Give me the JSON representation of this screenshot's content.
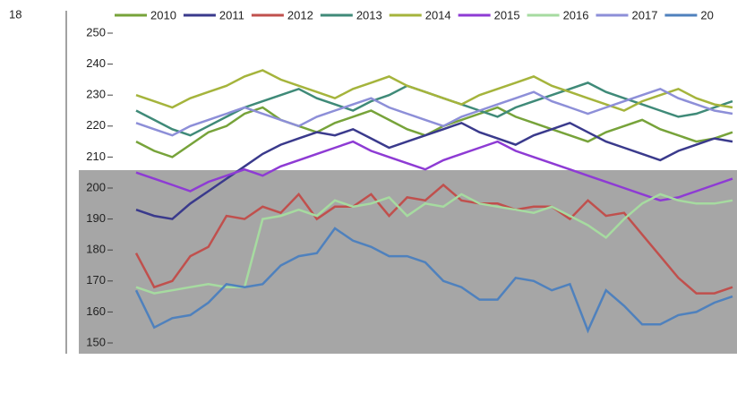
{
  "chart_data": {
    "type": "line",
    "annotation": "18",
    "categories": [
      null,
      null,
      null,
      null,
      null,
      null,
      null,
      null,
      null,
      null,
      null,
      null,
      null,
      null,
      null,
      null,
      null,
      null,
      null,
      null,
      null,
      null,
      null,
      null,
      null,
      null,
      null,
      null,
      null,
      null,
      null,
      null,
      null,
      null
    ],
    "ylim": [
      150,
      250
    ],
    "yticks": [
      150,
      160,
      170,
      180,
      190,
      200,
      210,
      220,
      230,
      240,
      250
    ],
    "grid": false,
    "legend": "top",
    "series": [
      {
        "name": "2010",
        "color": "#77a33a",
        "values": [
          215,
          212,
          210,
          214,
          218,
          220,
          224,
          226,
          222,
          220,
          218,
          221,
          223,
          225,
          222,
          219,
          217,
          220,
          222,
          224,
          226,
          223,
          221,
          219,
          217,
          215,
          218,
          220,
          222,
          219,
          217,
          215,
          216,
          218
        ]
      },
      {
        "name": "2011",
        "color": "#3a3a8c",
        "values": [
          193,
          191,
          190,
          195,
          199,
          203,
          207,
          211,
          214,
          216,
          218,
          217,
          219,
          216,
          213,
          215,
          217,
          219,
          221,
          218,
          216,
          214,
          217,
          219,
          221,
          218,
          215,
          213,
          211,
          209,
          212,
          214,
          216,
          215
        ]
      },
      {
        "name": "2012",
        "color": "#c0504d",
        "values": [
          179,
          168,
          170,
          178,
          181,
          191,
          190,
          194,
          192,
          198,
          190,
          194,
          194,
          198,
          191,
          197,
          196,
          201,
          196,
          195,
          195,
          193,
          194,
          194,
          190,
          196,
          191,
          192,
          185,
          178,
          171,
          166,
          166,
          168
        ]
      },
      {
        "name": "2013",
        "color": "#3f8a78",
        "values": [
          225,
          222,
          219,
          217,
          220,
          223,
          226,
          228,
          230,
          232,
          229,
          227,
          225,
          228,
          230,
          233,
          231,
          229,
          227,
          225,
          223,
          226,
          228,
          230,
          232,
          234,
          231,
          229,
          227,
          225,
          223,
          224,
          226,
          228
        ]
      },
      {
        "name": "2014",
        "color": "#a5b43c",
        "values": [
          230,
          228,
          226,
          229,
          231,
          233,
          236,
          238,
          235,
          233,
          231,
          229,
          232,
          234,
          236,
          233,
          231,
          229,
          227,
          230,
          232,
          234,
          236,
          233,
          231,
          229,
          227,
          225,
          228,
          230,
          232,
          229,
          227,
          226
        ]
      },
      {
        "name": "2015",
        "color": "#8e3bd4",
        "values": [
          205,
          203,
          201,
          199,
          202,
          204,
          206,
          204,
          207,
          209,
          211,
          213,
          215,
          212,
          210,
          208,
          206,
          209,
          211,
          213,
          215,
          212,
          210,
          208,
          206,
          204,
          202,
          200,
          198,
          196,
          197,
          199,
          201,
          203
        ]
      },
      {
        "name": "2016",
        "color": "#a6dba0",
        "values": [
          168,
          166,
          167,
          168,
          169,
          168,
          168,
          190,
          191,
          193,
          191,
          196,
          194,
          195,
          197,
          191,
          195,
          194,
          198,
          195,
          194,
          193,
          192,
          194,
          191,
          188,
          184,
          190,
          195,
          198,
          196,
          195,
          195,
          196
        ]
      },
      {
        "name": "2017",
        "color": "#8d8fd8",
        "values": [
          221,
          219,
          217,
          220,
          222,
          224,
          226,
          224,
          222,
          220,
          223,
          225,
          227,
          229,
          226,
          224,
          222,
          220,
          223,
          225,
          227,
          229,
          231,
          228,
          226,
          224,
          226,
          228,
          230,
          232,
          229,
          227,
          225,
          224
        ]
      },
      {
        "name": "20",
        "color": "#4f81bd",
        "values": [
          167,
          155,
          158,
          159,
          163,
          169,
          168,
          169,
          175,
          178,
          179,
          187,
          183,
          181,
          178,
          178,
          176,
          170,
          168,
          164,
          164,
          171,
          170,
          167,
          169,
          154,
          167,
          162,
          156,
          156,
          159,
          160,
          163,
          165
        ]
      }
    ]
  }
}
